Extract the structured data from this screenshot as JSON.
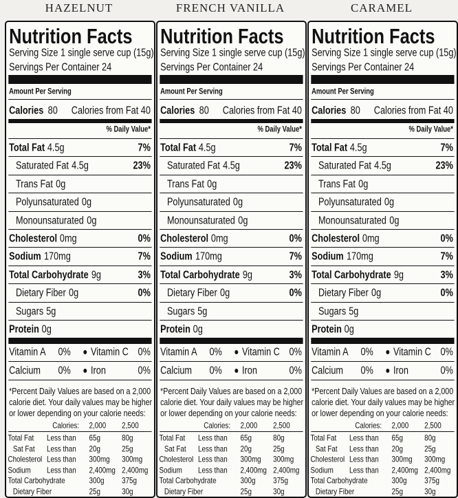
{
  "panels": [
    {
      "flavor": "HAZELNUT",
      "title": "Nutrition Facts",
      "serving_size": "Serving Size 1 single serve cup (15g)",
      "servings_per_container": "Servings Per Container 24",
      "amount_per_serving": "Amount Per Serving",
      "calories": {
        "label": "Calories",
        "value": "80",
        "from_fat": "Calories from Fat 40"
      },
      "daily_value_heading": "% Daily Value*",
      "nutrients": [
        {
          "name": "Total Fat",
          "amount": "4.5g",
          "dv": "7%",
          "sub": [
            {
              "name": "Saturated Fat",
              "amount": "4.5g",
              "dv": "23%"
            },
            {
              "name": "Trans Fat",
              "amount": "0g"
            },
            {
              "name": "Polyunsaturated",
              "amount": "0g"
            },
            {
              "name": "Monounsaturated",
              "amount": "0g"
            }
          ]
        },
        {
          "name": "Cholesterol",
          "amount": "0mg",
          "dv": "0%"
        },
        {
          "name": "Sodium",
          "amount": "170mg",
          "dv": "7%"
        },
        {
          "name": "Total Carbohydrate",
          "amount": "9g",
          "dv": "3%",
          "sub": [
            {
              "name": "Dietary Fiber",
              "amount": "0g",
              "dv": "0%"
            },
            {
              "name": "Sugars",
              "amount": "5g"
            }
          ]
        },
        {
          "name": "Protein",
          "amount": "0g"
        }
      ],
      "vitamins": [
        [
          {
            "name": "Vitamin A",
            "dv": "0%"
          },
          {
            "name": "Vitamin C",
            "dv": "0%"
          }
        ],
        [
          {
            "name": "Calcium",
            "dv": "0%"
          },
          {
            "name": "Iron",
            "dv": "0%"
          }
        ]
      ],
      "footnote": [
        "*Percent Daily Values are based on a 2,000",
        "calorie diet. Your daily values may be higher",
        "or lower depending on your calorie needs:"
      ],
      "reference": {
        "header": [
          "Calories:",
          "2,000",
          "2,500"
        ],
        "rows": [
          [
            "Total Fat",
            "Less than",
            "65g",
            "80g"
          ],
          [
            "Sat Fat",
            "Less than",
            "20g",
            "25g"
          ],
          [
            "Cholesterol",
            "Less than",
            "300mg",
            "300mg"
          ],
          [
            "Sodium",
            "Less than",
            "2,400mg",
            "2,400mg"
          ],
          [
            "Total Carbohydrate",
            "300g",
            "375g"
          ],
          [
            "Dietary Fiber",
            "25g",
            "30g"
          ]
        ]
      }
    },
    {
      "flavor": "FRENCH VANILLA",
      "title": "Nutrition Facts",
      "serving_size": "Serving Size 1 single serve cup (15g)",
      "servings_per_container": "Servings Per Container 24",
      "amount_per_serving": "Amount Per Serving",
      "calories": {
        "label": "Calories",
        "value": "80",
        "from_fat": "Calories from Fat 40"
      },
      "daily_value_heading": "% Daily Value*",
      "nutrients": [
        {
          "name": "Total Fat",
          "amount": "4.5g",
          "dv": "7%",
          "sub": [
            {
              "name": "Saturated Fat",
              "amount": "4.5g",
              "dv": "23%"
            },
            {
              "name": "Trans Fat",
              "amount": "0g"
            },
            {
              "name": "Polyunsaturated",
              "amount": "0g"
            },
            {
              "name": "Monounsaturated",
              "amount": "0g"
            }
          ]
        },
        {
          "name": "Cholesterol",
          "amount": "0mg",
          "dv": "0%"
        },
        {
          "name": "Sodium",
          "amount": "170mg",
          "dv": "7%"
        },
        {
          "name": "Total Carbohydrate",
          "amount": "9g",
          "dv": "3%",
          "sub": [
            {
              "name": "Dietary Fiber",
              "amount": "0g",
              "dv": "0%"
            },
            {
              "name": "Sugars",
              "amount": "5g"
            }
          ]
        },
        {
          "name": "Protein",
          "amount": "0g"
        }
      ],
      "vitamins": [
        [
          {
            "name": "Vitamin A",
            "dv": "0%"
          },
          {
            "name": "Vitamin C",
            "dv": "0%"
          }
        ],
        [
          {
            "name": "Calcium",
            "dv": "0%"
          },
          {
            "name": "Iron",
            "dv": "0%"
          }
        ]
      ],
      "footnote": [
        "*Percent Daily Values are based on a 2,000",
        "calorie diet. Your daily values may be higher",
        "or lower depending on your calorie needs:"
      ],
      "reference": {
        "header": [
          "Calories:",
          "2,000",
          "2,500"
        ],
        "rows": [
          [
            "Total Fat",
            "Less than",
            "65g",
            "80g"
          ],
          [
            "Sat Fat",
            "Less than",
            "20g",
            "25g"
          ],
          [
            "Cholesterol",
            "Less than",
            "300mg",
            "300mg"
          ],
          [
            "Sodium",
            "Less than",
            "2,400mg",
            "2,400mg"
          ],
          [
            "Total Carbohydrate",
            "300g",
            "375g"
          ],
          [
            "Dietary Fiber",
            "25g",
            "30g"
          ]
        ]
      }
    },
    {
      "flavor": "CARAMEL",
      "title": "Nutrition Facts",
      "serving_size": "Serving Size 1 single serve cup (15g)",
      "servings_per_container": "Servings Per Container 24",
      "amount_per_serving": "Amount Per Serving",
      "calories": {
        "label": "Calories",
        "value": "80",
        "from_fat": "Calories from Fat 40"
      },
      "daily_value_heading": "% Daily Value*",
      "nutrients": [
        {
          "name": "Total Fat",
          "amount": "4.5g",
          "dv": "7%",
          "sub": [
            {
              "name": "Saturated Fat",
              "amount": "4.5g",
              "dv": "23%"
            },
            {
              "name": "Trans Fat",
              "amount": "0g"
            },
            {
              "name": "Polyunsaturated",
              "amount": "0g"
            },
            {
              "name": "Monounsaturated",
              "amount": "0g"
            }
          ]
        },
        {
          "name": "Cholesterol",
          "amount": "0mg",
          "dv": "0%"
        },
        {
          "name": "Sodium",
          "amount": "170mg",
          "dv": "7%"
        },
        {
          "name": "Total Carbohydrate",
          "amount": "9g",
          "dv": "3%",
          "sub": [
            {
              "name": "Dietary Fiber",
              "amount": "0g",
              "dv": "0%"
            },
            {
              "name": "Sugars",
              "amount": "5g"
            }
          ]
        },
        {
          "name": "Protein",
          "amount": "0g"
        }
      ],
      "vitamins": [
        [
          {
            "name": "Vitamin A",
            "dv": "0%"
          },
          {
            "name": "Vitamin C",
            "dv": "0%"
          }
        ],
        [
          {
            "name": "Calcium",
            "dv": "0%"
          },
          {
            "name": "Iron",
            "dv": "0%"
          }
        ]
      ],
      "footnote": [
        "*Percent Daily Values are based on a 2,000",
        "calorie diet. Your daily values may be higher",
        "or lower depending on your calorie needs:"
      ],
      "reference": {
        "header": [
          "Calories:",
          "2,000",
          "2,500"
        ],
        "rows": [
          [
            "Total Fat",
            "Less than",
            "65g",
            "80g"
          ],
          [
            "Sat Fat",
            "Less than",
            "20g",
            "25g"
          ],
          [
            "Cholesterol",
            "Less than",
            "300mg",
            "300mg"
          ],
          [
            "Sodium",
            "Less than",
            "2,400mg",
            "2,400mg"
          ],
          [
            "Total Carbohydrate",
            "300g",
            "375g"
          ],
          [
            "Dietary Fiber",
            "25g",
            "30g"
          ]
        ]
      }
    }
  ]
}
